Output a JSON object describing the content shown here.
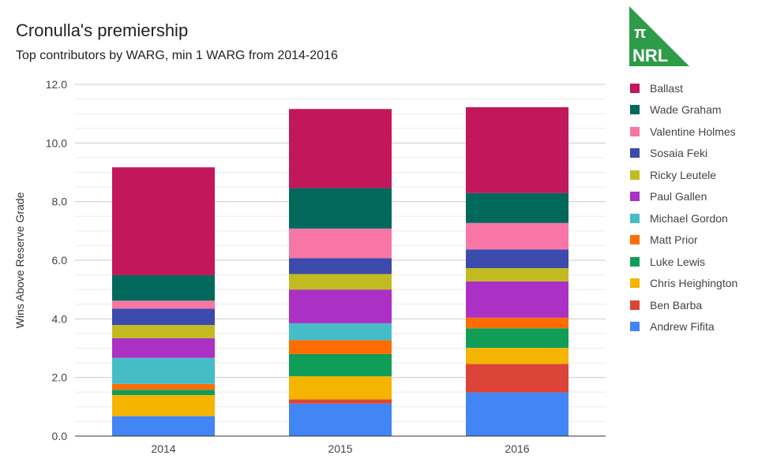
{
  "title": "Cronulla's premiership",
  "subtitle": "Top contributors by WARG, min 1 WARG from 2014-2016",
  "logo": {
    "symbol": "π",
    "text": "NRL",
    "color": "#2e9b48"
  },
  "chart_data": {
    "type": "bar",
    "stacked": true,
    "title": "Cronulla's premiership",
    "subtitle": "Top contributors by WARG, min 1 WARG from 2014-2016",
    "xlabel": "",
    "ylabel": "Wins Above Reserve Grade",
    "ylim": [
      0,
      12
    ],
    "yticks": [
      "0.0",
      "2.0",
      "4.0",
      "6.0",
      "8.0",
      "10.0",
      "12.0"
    ],
    "grid": true,
    "legend_position": "right",
    "categories": [
      "2014",
      "2015",
      "2016"
    ],
    "series": [
      {
        "name": "Andrew Fifita",
        "color": "#4285f4",
        "values": [
          0.68,
          1.11,
          1.49
        ]
      },
      {
        "name": "Ben Barba",
        "color": "#db4437",
        "values": [
          0,
          0.14,
          0.97
        ]
      },
      {
        "name": "Chris Heighington",
        "color": "#f4b400",
        "values": [
          0.72,
          0.79,
          0.55
        ]
      },
      {
        "name": "Luke Lewis",
        "color": "#0f9d58",
        "values": [
          0.18,
          0.76,
          0.67
        ]
      },
      {
        "name": "Matt Prior",
        "color": "#ff6d00",
        "values": [
          0.2,
          0.47,
          0.36
        ]
      },
      {
        "name": "Michael Gordon",
        "color": "#46bdc6",
        "values": [
          0.89,
          0.58,
          0
        ]
      },
      {
        "name": "Paul Gallen",
        "color": "#ab30c4",
        "values": [
          0.67,
          1.15,
          1.24
        ]
      },
      {
        "name": "Ricky Leutele",
        "color": "#c2bb20",
        "values": [
          0.45,
          0.53,
          0.45
        ]
      },
      {
        "name": "Sosaia Feki",
        "color": "#3c4aab",
        "values": [
          0.56,
          0.54,
          0.64
        ]
      },
      {
        "name": "Valentine Holmes",
        "color": "#f776a5",
        "values": [
          0.27,
          1.01,
          0.9
        ]
      },
      {
        "name": "Wade Graham",
        "color": "#00695c",
        "values": [
          0.87,
          1.38,
          1.02
        ]
      },
      {
        "name": "Ballast",
        "color": "#c2185b",
        "values": [
          3.68,
          2.7,
          2.93
        ]
      }
    ]
  }
}
